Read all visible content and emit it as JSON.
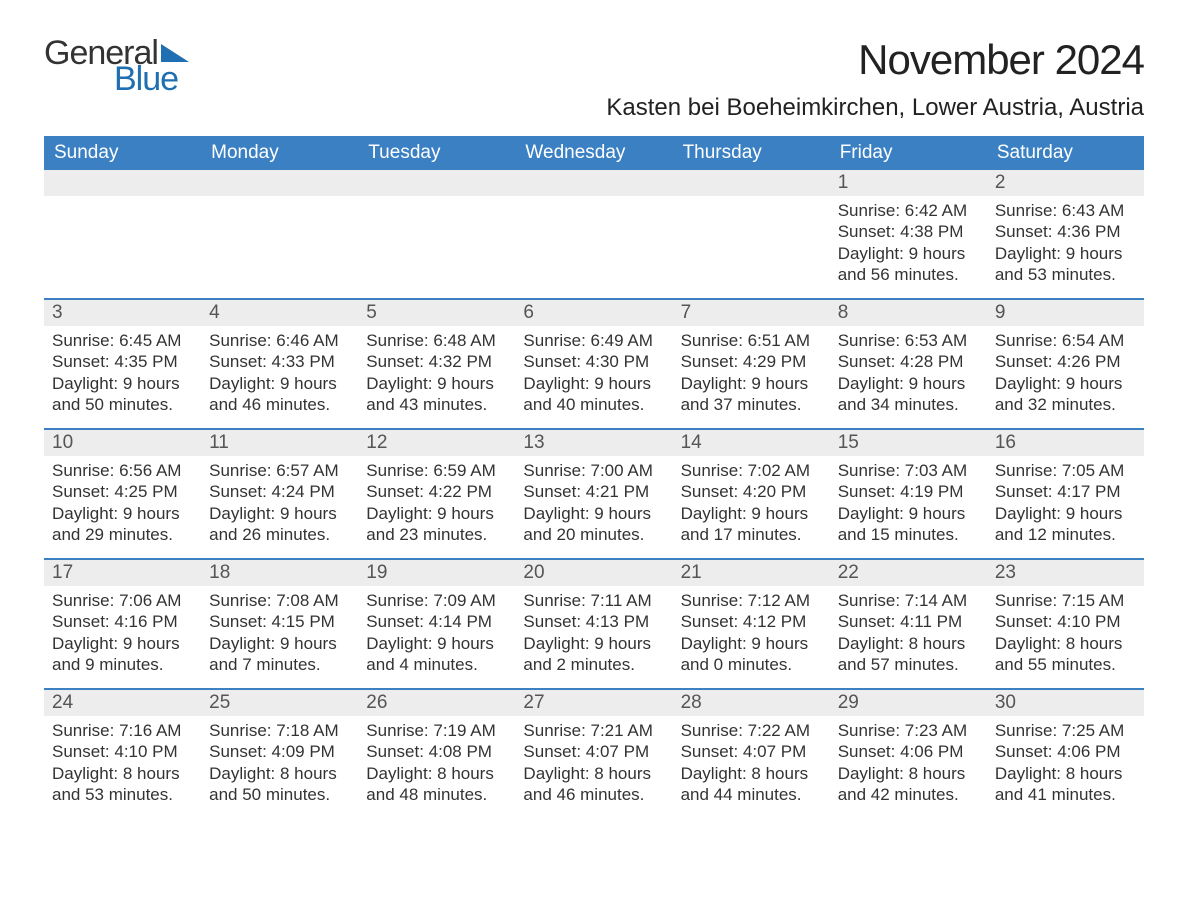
{
  "logo": {
    "text_general": "General",
    "text_blue": "Blue",
    "brand_color": "#1f6fb2"
  },
  "title": "November 2024",
  "location": "Kasten bei Boeheimkirchen, Lower Austria, Austria",
  "colors": {
    "header_bg": "#3a80c3",
    "header_text": "#ffffff",
    "week_border": "#3a80c3",
    "daynum_bg": "#ededed",
    "body_bg": "#ffffff",
    "text": "#333333"
  },
  "typography": {
    "title_fontsize": 42,
    "location_fontsize": 24,
    "header_fontsize": 19,
    "daynum_fontsize": 19,
    "body_fontsize": 17,
    "font_family": "Arial"
  },
  "day_headers": [
    "Sunday",
    "Monday",
    "Tuesday",
    "Wednesday",
    "Thursday",
    "Friday",
    "Saturday"
  ],
  "weeks": [
    [
      {
        "day": "",
        "sunrise": "",
        "sunset": "",
        "daylight1": "",
        "daylight2": ""
      },
      {
        "day": "",
        "sunrise": "",
        "sunset": "",
        "daylight1": "",
        "daylight2": ""
      },
      {
        "day": "",
        "sunrise": "",
        "sunset": "",
        "daylight1": "",
        "daylight2": ""
      },
      {
        "day": "",
        "sunrise": "",
        "sunset": "",
        "daylight1": "",
        "daylight2": ""
      },
      {
        "day": "",
        "sunrise": "",
        "sunset": "",
        "daylight1": "",
        "daylight2": ""
      },
      {
        "day": "1",
        "sunrise": "Sunrise: 6:42 AM",
        "sunset": "Sunset: 4:38 PM",
        "daylight1": "Daylight: 9 hours",
        "daylight2": "and 56 minutes."
      },
      {
        "day": "2",
        "sunrise": "Sunrise: 6:43 AM",
        "sunset": "Sunset: 4:36 PM",
        "daylight1": "Daylight: 9 hours",
        "daylight2": "and 53 minutes."
      }
    ],
    [
      {
        "day": "3",
        "sunrise": "Sunrise: 6:45 AM",
        "sunset": "Sunset: 4:35 PM",
        "daylight1": "Daylight: 9 hours",
        "daylight2": "and 50 minutes."
      },
      {
        "day": "4",
        "sunrise": "Sunrise: 6:46 AM",
        "sunset": "Sunset: 4:33 PM",
        "daylight1": "Daylight: 9 hours",
        "daylight2": "and 46 minutes."
      },
      {
        "day": "5",
        "sunrise": "Sunrise: 6:48 AM",
        "sunset": "Sunset: 4:32 PM",
        "daylight1": "Daylight: 9 hours",
        "daylight2": "and 43 minutes."
      },
      {
        "day": "6",
        "sunrise": "Sunrise: 6:49 AM",
        "sunset": "Sunset: 4:30 PM",
        "daylight1": "Daylight: 9 hours",
        "daylight2": "and 40 minutes."
      },
      {
        "day": "7",
        "sunrise": "Sunrise: 6:51 AM",
        "sunset": "Sunset: 4:29 PM",
        "daylight1": "Daylight: 9 hours",
        "daylight2": "and 37 minutes."
      },
      {
        "day": "8",
        "sunrise": "Sunrise: 6:53 AM",
        "sunset": "Sunset: 4:28 PM",
        "daylight1": "Daylight: 9 hours",
        "daylight2": "and 34 minutes."
      },
      {
        "day": "9",
        "sunrise": "Sunrise: 6:54 AM",
        "sunset": "Sunset: 4:26 PM",
        "daylight1": "Daylight: 9 hours",
        "daylight2": "and 32 minutes."
      }
    ],
    [
      {
        "day": "10",
        "sunrise": "Sunrise: 6:56 AM",
        "sunset": "Sunset: 4:25 PM",
        "daylight1": "Daylight: 9 hours",
        "daylight2": "and 29 minutes."
      },
      {
        "day": "11",
        "sunrise": "Sunrise: 6:57 AM",
        "sunset": "Sunset: 4:24 PM",
        "daylight1": "Daylight: 9 hours",
        "daylight2": "and 26 minutes."
      },
      {
        "day": "12",
        "sunrise": "Sunrise: 6:59 AM",
        "sunset": "Sunset: 4:22 PM",
        "daylight1": "Daylight: 9 hours",
        "daylight2": "and 23 minutes."
      },
      {
        "day": "13",
        "sunrise": "Sunrise: 7:00 AM",
        "sunset": "Sunset: 4:21 PM",
        "daylight1": "Daylight: 9 hours",
        "daylight2": "and 20 minutes."
      },
      {
        "day": "14",
        "sunrise": "Sunrise: 7:02 AM",
        "sunset": "Sunset: 4:20 PM",
        "daylight1": "Daylight: 9 hours",
        "daylight2": "and 17 minutes."
      },
      {
        "day": "15",
        "sunrise": "Sunrise: 7:03 AM",
        "sunset": "Sunset: 4:19 PM",
        "daylight1": "Daylight: 9 hours",
        "daylight2": "and 15 minutes."
      },
      {
        "day": "16",
        "sunrise": "Sunrise: 7:05 AM",
        "sunset": "Sunset: 4:17 PM",
        "daylight1": "Daylight: 9 hours",
        "daylight2": "and 12 minutes."
      }
    ],
    [
      {
        "day": "17",
        "sunrise": "Sunrise: 7:06 AM",
        "sunset": "Sunset: 4:16 PM",
        "daylight1": "Daylight: 9 hours",
        "daylight2": "and 9 minutes."
      },
      {
        "day": "18",
        "sunrise": "Sunrise: 7:08 AM",
        "sunset": "Sunset: 4:15 PM",
        "daylight1": "Daylight: 9 hours",
        "daylight2": "and 7 minutes."
      },
      {
        "day": "19",
        "sunrise": "Sunrise: 7:09 AM",
        "sunset": "Sunset: 4:14 PM",
        "daylight1": "Daylight: 9 hours",
        "daylight2": "and 4 minutes."
      },
      {
        "day": "20",
        "sunrise": "Sunrise: 7:11 AM",
        "sunset": "Sunset: 4:13 PM",
        "daylight1": "Daylight: 9 hours",
        "daylight2": "and 2 minutes."
      },
      {
        "day": "21",
        "sunrise": "Sunrise: 7:12 AM",
        "sunset": "Sunset: 4:12 PM",
        "daylight1": "Daylight: 9 hours",
        "daylight2": "and 0 minutes."
      },
      {
        "day": "22",
        "sunrise": "Sunrise: 7:14 AM",
        "sunset": "Sunset: 4:11 PM",
        "daylight1": "Daylight: 8 hours",
        "daylight2": "and 57 minutes."
      },
      {
        "day": "23",
        "sunrise": "Sunrise: 7:15 AM",
        "sunset": "Sunset: 4:10 PM",
        "daylight1": "Daylight: 8 hours",
        "daylight2": "and 55 minutes."
      }
    ],
    [
      {
        "day": "24",
        "sunrise": "Sunrise: 7:16 AM",
        "sunset": "Sunset: 4:10 PM",
        "daylight1": "Daylight: 8 hours",
        "daylight2": "and 53 minutes."
      },
      {
        "day": "25",
        "sunrise": "Sunrise: 7:18 AM",
        "sunset": "Sunset: 4:09 PM",
        "daylight1": "Daylight: 8 hours",
        "daylight2": "and 50 minutes."
      },
      {
        "day": "26",
        "sunrise": "Sunrise: 7:19 AM",
        "sunset": "Sunset: 4:08 PM",
        "daylight1": "Daylight: 8 hours",
        "daylight2": "and 48 minutes."
      },
      {
        "day": "27",
        "sunrise": "Sunrise: 7:21 AM",
        "sunset": "Sunset: 4:07 PM",
        "daylight1": "Daylight: 8 hours",
        "daylight2": "and 46 minutes."
      },
      {
        "day": "28",
        "sunrise": "Sunrise: 7:22 AM",
        "sunset": "Sunset: 4:07 PM",
        "daylight1": "Daylight: 8 hours",
        "daylight2": "and 44 minutes."
      },
      {
        "day": "29",
        "sunrise": "Sunrise: 7:23 AM",
        "sunset": "Sunset: 4:06 PM",
        "daylight1": "Daylight: 8 hours",
        "daylight2": "and 42 minutes."
      },
      {
        "day": "30",
        "sunrise": "Sunrise: 7:25 AM",
        "sunset": "Sunset: 4:06 PM",
        "daylight1": "Daylight: 8 hours",
        "daylight2": "and 41 minutes."
      }
    ]
  ]
}
